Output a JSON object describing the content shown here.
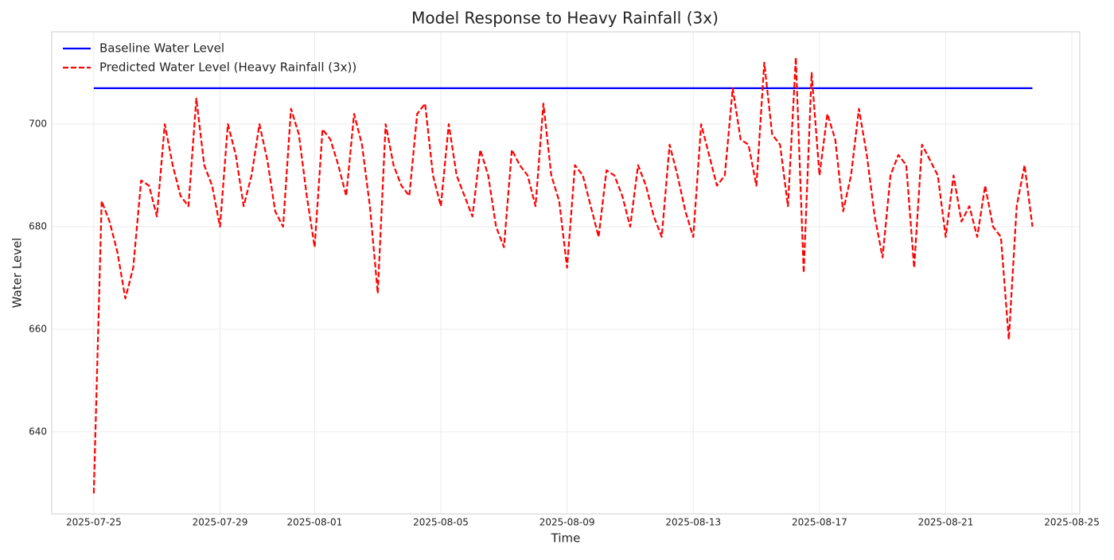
{
  "chart_data": {
    "type": "line",
    "title": "Model Response to Heavy Rainfall (3x)",
    "xlabel": "Time",
    "ylabel": "Water Level",
    "x": [
      "2025-07-25 00:00",
      "2025-07-25 06:00",
      "2025-07-25 12:00",
      "2025-07-25 18:00",
      "2025-07-26 00:00",
      "2025-07-26 06:00",
      "2025-07-26 12:00",
      "2025-07-26 18:00",
      "2025-07-27 00:00",
      "2025-07-27 06:00",
      "2025-07-27 12:00",
      "2025-07-27 18:00",
      "2025-07-28 00:00",
      "2025-07-28 06:00",
      "2025-07-28 12:00",
      "2025-07-28 18:00",
      "2025-07-29 00:00",
      "2025-07-29 06:00",
      "2025-07-29 12:00",
      "2025-07-29 18:00",
      "2025-07-30 00:00",
      "2025-07-30 06:00",
      "2025-07-30 12:00",
      "2025-07-30 18:00",
      "2025-07-31 00:00",
      "2025-07-31 06:00",
      "2025-07-31 12:00",
      "2025-07-31 18:00",
      "2025-08-01 00:00",
      "2025-08-01 06:00",
      "2025-08-01 12:00",
      "2025-08-01 18:00",
      "2025-08-02 00:00",
      "2025-08-02 06:00",
      "2025-08-02 12:00",
      "2025-08-02 18:00",
      "2025-08-03 00:00",
      "2025-08-03 06:00",
      "2025-08-03 12:00",
      "2025-08-03 18:00",
      "2025-08-04 00:00",
      "2025-08-04 06:00",
      "2025-08-04 12:00",
      "2025-08-04 18:00",
      "2025-08-05 00:00",
      "2025-08-05 06:00",
      "2025-08-05 12:00",
      "2025-08-05 18:00",
      "2025-08-06 00:00",
      "2025-08-06 06:00",
      "2025-08-06 12:00",
      "2025-08-06 18:00",
      "2025-08-07 00:00",
      "2025-08-07 06:00",
      "2025-08-07 12:00",
      "2025-08-07 18:00",
      "2025-08-08 00:00",
      "2025-08-08 06:00",
      "2025-08-08 12:00",
      "2025-08-08 18:00",
      "2025-08-09 00:00",
      "2025-08-09 06:00",
      "2025-08-09 12:00",
      "2025-08-09 18:00",
      "2025-08-10 00:00",
      "2025-08-10 06:00",
      "2025-08-10 12:00",
      "2025-08-10 18:00",
      "2025-08-11 00:00",
      "2025-08-11 06:00",
      "2025-08-11 12:00",
      "2025-08-11 18:00",
      "2025-08-12 00:00",
      "2025-08-12 06:00",
      "2025-08-12 12:00",
      "2025-08-12 18:00",
      "2025-08-13 00:00",
      "2025-08-13 06:00",
      "2025-08-13 12:00",
      "2025-08-13 18:00",
      "2025-08-14 00:00",
      "2025-08-14 06:00",
      "2025-08-14 12:00",
      "2025-08-14 18:00",
      "2025-08-15 00:00",
      "2025-08-15 06:00",
      "2025-08-15 12:00",
      "2025-08-15 18:00",
      "2025-08-16 00:00",
      "2025-08-16 06:00",
      "2025-08-16 12:00",
      "2025-08-16 18:00",
      "2025-08-17 00:00",
      "2025-08-17 06:00",
      "2025-08-17 12:00",
      "2025-08-17 18:00",
      "2025-08-18 00:00",
      "2025-08-18 06:00",
      "2025-08-18 12:00",
      "2025-08-18 18:00",
      "2025-08-19 00:00",
      "2025-08-19 06:00",
      "2025-08-19 12:00",
      "2025-08-19 18:00",
      "2025-08-20 00:00",
      "2025-08-20 06:00",
      "2025-08-20 12:00",
      "2025-08-20 18:00",
      "2025-08-21 00:00",
      "2025-08-21 06:00",
      "2025-08-21 12:00",
      "2025-08-21 18:00",
      "2025-08-22 00:00",
      "2025-08-22 06:00",
      "2025-08-22 12:00",
      "2025-08-22 18:00",
      "2025-08-23 00:00",
      "2025-08-23 06:00",
      "2025-08-23 12:00",
      "2025-08-23 18:00"
    ],
    "series": [
      {
        "name": "Baseline Water Level",
        "color": "#0000ff",
        "dash": false,
        "values": [
          707,
          707,
          707,
          707,
          707,
          707,
          707,
          707,
          707,
          707,
          707,
          707,
          707,
          707,
          707,
          707,
          707,
          707,
          707,
          707,
          707,
          707,
          707,
          707,
          707,
          707,
          707,
          707,
          707,
          707,
          707,
          707,
          707,
          707,
          707,
          707,
          707,
          707,
          707,
          707,
          707,
          707,
          707,
          707,
          707,
          707,
          707,
          707,
          707,
          707,
          707,
          707,
          707,
          707,
          707,
          707,
          707,
          707,
          707,
          707,
          707,
          707,
          707,
          707,
          707,
          707,
          707,
          707,
          707,
          707,
          707,
          707,
          707,
          707,
          707,
          707,
          707,
          707,
          707,
          707,
          707,
          707,
          707,
          707,
          707,
          707,
          707,
          707,
          707,
          707,
          707,
          707,
          707,
          707,
          707,
          707,
          707,
          707,
          707,
          707,
          707,
          707,
          707,
          707,
          707,
          707,
          707,
          707,
          707,
          707,
          707,
          707,
          707,
          707,
          707,
          707,
          707,
          707,
          707,
          707
        ]
      },
      {
        "name": "Predicted Water Level (Heavy Rainfall (3x))",
        "color": "#ff0000",
        "dash": true,
        "values": [
          628,
          685,
          681,
          675,
          666,
          672,
          689,
          688,
          682,
          700,
          692,
          686,
          684,
          705,
          692,
          688,
          680,
          700,
          694,
          684,
          690,
          700,
          693,
          683,
          680,
          703,
          698,
          686,
          676,
          699,
          697,
          692,
          686,
          702,
          696,
          684,
          667,
          700,
          692,
          688,
          686,
          702,
          704,
          690,
          684,
          700,
          690,
          686,
          682,
          695,
          690,
          680,
          676,
          695,
          692,
          690,
          684,
          704,
          690,
          685,
          672,
          692,
          690,
          684,
          678,
          691,
          690,
          686,
          680,
          692,
          688,
          682,
          678,
          696,
          690,
          683,
          678,
          700,
          694,
          688,
          690,
          707,
          697,
          696,
          688,
          712,
          698,
          696,
          684,
          713,
          671,
          710,
          690,
          702,
          697,
          683,
          690,
          703,
          694,
          682,
          674,
          690,
          694,
          692,
          672,
          696,
          693,
          690,
          678,
          690,
          681,
          684,
          678,
          688,
          680,
          678,
          658,
          684,
          692,
          680
        ]
      }
    ],
    "xlim": [
      "2025-07-23 16:00",
      "2025-08-25 06:00"
    ],
    "xticks": [
      "2025-07-25",
      "2025-07-29",
      "2025-08-01",
      "2025-08-05",
      "2025-08-09",
      "2025-08-13",
      "2025-08-17",
      "2025-08-21",
      "2025-08-25"
    ],
    "ylim": [
      624,
      718
    ],
    "yticks": [
      640,
      660,
      680,
      700
    ],
    "grid": true,
    "legend": "upper left"
  }
}
